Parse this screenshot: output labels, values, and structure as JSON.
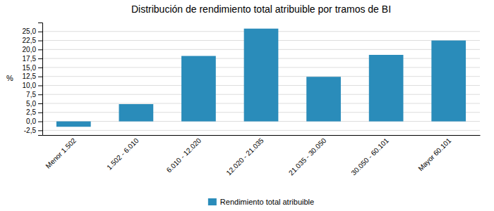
{
  "chart_data": {
    "type": "bar",
    "title": "Distribución de rendimiento total atribuible por tramos de BI",
    "ylabel": "%",
    "categories": [
      "Menor 1.502",
      "1.502 - 6.010",
      "6.010 - 12.020",
      "12.020 - 21.035",
      "21.035 - 30.050",
      "30.050 - 60.101",
      "Mayor 60.101"
    ],
    "series": [
      {
        "name": "Rendimiento total atribuible",
        "color": "#2a8cba",
        "values": [
          -1.5,
          4.8,
          18.2,
          25.8,
          12.4,
          18.5,
          22.5
        ]
      }
    ],
    "ylim": [
      -3.8,
      27.5
    ],
    "yticks": [
      {
        "value": -2.5,
        "label": "-2,5"
      },
      {
        "value": 0.0,
        "label": "0,0"
      },
      {
        "value": 2.5,
        "label": "2,5"
      },
      {
        "value": 5.0,
        "label": "5,0"
      },
      {
        "value": 7.5,
        "label": "7,5"
      },
      {
        "value": 10.0,
        "label": "10,0"
      },
      {
        "value": 12.5,
        "label": "12,5"
      },
      {
        "value": 15.0,
        "label": "15,0"
      },
      {
        "value": 17.5,
        "label": "17,5"
      },
      {
        "value": 20.0,
        "label": "20,0"
      },
      {
        "value": 22.5,
        "label": "22,5"
      },
      {
        "value": 25.0,
        "label": "25,0"
      }
    ],
    "grid": true,
    "legend": "bottom"
  }
}
